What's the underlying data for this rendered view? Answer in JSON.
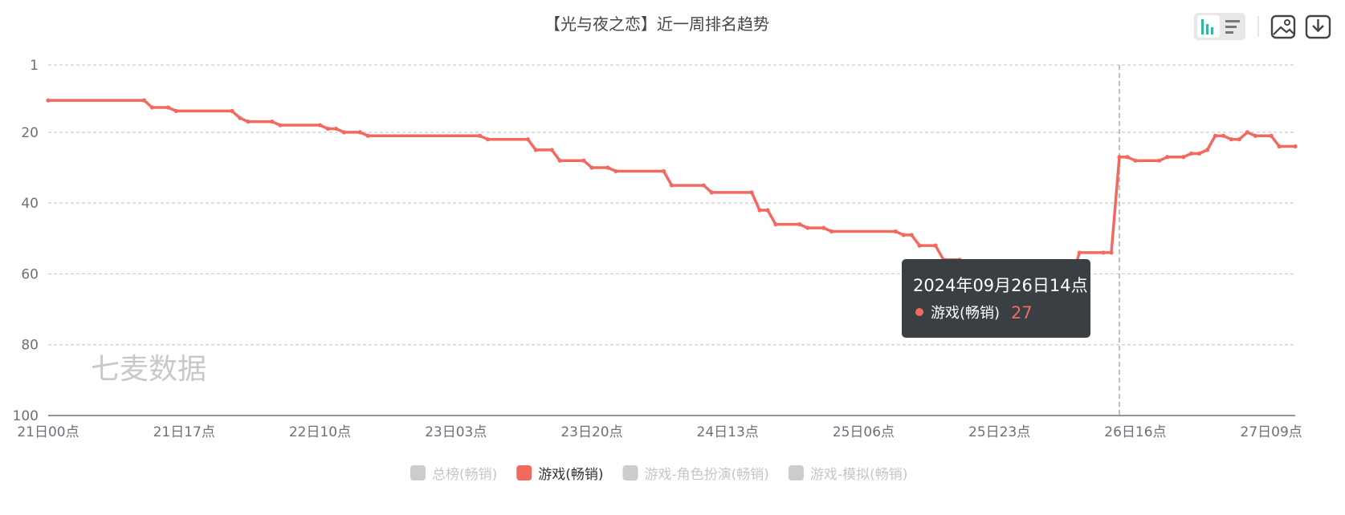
{
  "toolbar": {
    "chart_type_icon": "bar-chart-icon",
    "list_icon": "list-icon",
    "image_icon": "image-icon",
    "download_icon": "download-icon"
  },
  "watermark": "七麦数据",
  "tooltip": {
    "title": "2024年09月26日14点",
    "series": "游戏(畅销)",
    "value": "27"
  },
  "chart_data": {
    "type": "line",
    "title": "【光与夜之恋】近一周排名趋势",
    "y_inverted": true,
    "ylim": [
      1,
      100
    ],
    "y_ticks": [
      "1",
      "20",
      "40",
      "60",
      "80",
      "100"
    ],
    "x_tick_labels": [
      "21日00点",
      "21日17点",
      "22日10点",
      "23日03点",
      "23日20点",
      "24日13点",
      "25日06点",
      "25日23点",
      "26日16点",
      "27日09点"
    ],
    "x_ticks_hours": [
      0,
      17,
      34,
      51,
      68,
      85,
      102,
      119,
      136,
      153
    ],
    "x_range_hours": [
      0,
      156
    ],
    "grid": true,
    "legend_position": "bottom",
    "legend": [
      {
        "name": "总榜(畅销)",
        "active": false
      },
      {
        "name": "游戏(畅销)",
        "active": true
      },
      {
        "name": "游戏-角色扮演(畅销)",
        "active": false
      },
      {
        "name": "游戏-模拟(畅销)",
        "active": false
      }
    ],
    "colors": {
      "line": "#f26a5f",
      "inactive": "#cccccc",
      "grid": "#cccccc",
      "axis": "#6e7079",
      "tooltip_bg": "#3a3f44"
    },
    "series": [
      {
        "name": "游戏(畅销)",
        "points": [
          [
            0,
            11
          ],
          [
            12,
            11
          ],
          [
            13,
            13
          ],
          [
            15,
            13
          ],
          [
            16,
            14
          ],
          [
            23,
            14
          ],
          [
            24,
            16
          ],
          [
            25,
            17
          ],
          [
            28,
            17
          ],
          [
            29,
            18
          ],
          [
            34,
            18
          ],
          [
            35,
            19
          ],
          [
            36,
            19
          ],
          [
            37,
            20
          ],
          [
            39,
            20
          ],
          [
            40,
            21
          ],
          [
            54,
            21
          ],
          [
            55,
            22
          ],
          [
            60,
            22
          ],
          [
            61,
            25
          ],
          [
            63,
            25
          ],
          [
            64,
            28
          ],
          [
            67,
            28
          ],
          [
            68,
            30
          ],
          [
            70,
            30
          ],
          [
            71,
            31
          ],
          [
            77,
            31
          ],
          [
            78,
            35
          ],
          [
            82,
            35
          ],
          [
            83,
            37
          ],
          [
            88,
            37
          ],
          [
            89,
            42
          ],
          [
            90,
            42
          ],
          [
            91,
            46
          ],
          [
            94,
            46
          ],
          [
            95,
            47
          ],
          [
            97,
            47
          ],
          [
            98,
            48
          ],
          [
            106,
            48
          ],
          [
            107,
            49
          ],
          [
            108,
            49
          ],
          [
            109,
            52
          ],
          [
            111,
            52
          ],
          [
            112,
            56
          ],
          [
            114,
            56
          ],
          [
            115,
            58
          ],
          [
            119,
            58
          ],
          [
            120,
            59
          ],
          [
            127,
            59
          ],
          [
            128,
            62
          ],
          [
            129,
            54
          ],
          [
            132,
            54
          ],
          [
            133,
            54
          ],
          [
            134,
            27
          ],
          [
            135,
            27
          ],
          [
            136,
            28
          ],
          [
            139,
            28
          ],
          [
            140,
            27
          ],
          [
            142,
            27
          ],
          [
            143,
            26
          ],
          [
            144,
            26
          ],
          [
            145,
            25
          ],
          [
            146,
            21
          ],
          [
            147,
            21
          ],
          [
            148,
            22
          ],
          [
            149,
            22
          ],
          [
            150,
            20
          ],
          [
            151,
            21
          ],
          [
            153,
            21
          ],
          [
            154,
            24
          ],
          [
            156,
            24
          ]
        ]
      }
    ],
    "highlight": {
      "hour": 134,
      "value": 27
    }
  }
}
